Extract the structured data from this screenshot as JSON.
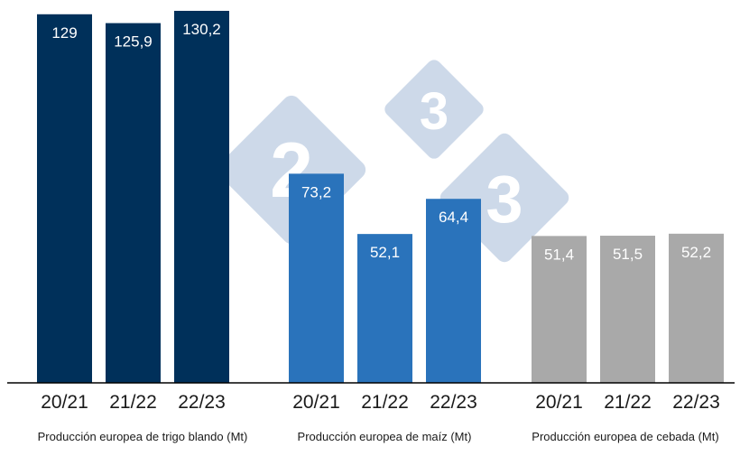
{
  "chart_data": {
    "type": "bar",
    "title": "",
    "ylabel": "",
    "ylim": [
      0,
      135
    ],
    "grid": false,
    "groups": [
      {
        "label": "Producción europea de trigo blando (Mt)",
        "color": "#00305a",
        "categories": [
          "20/21",
          "21/22",
          "22/23"
        ],
        "values": [
          129,
          125.9,
          130.2
        ],
        "value_labels": [
          "129",
          "125,9",
          "130,2"
        ]
      },
      {
        "label": "Producción europea de maíz (Mt)",
        "color": "#2a73bb",
        "categories": [
          "20/21",
          "21/22",
          "22/23"
        ],
        "values": [
          73.2,
          52.1,
          64.4
        ],
        "value_labels": [
          "73,2",
          "52,1",
          "64,4"
        ]
      },
      {
        "label": "Producción europea de cebada (Mt)",
        "color": "#a9a9a9",
        "categories": [
          "20/21",
          "21/22",
          "22/23"
        ],
        "values": [
          51.4,
          51.5,
          52.2
        ],
        "value_labels": [
          "51,4",
          "51,5",
          "52,2"
        ]
      }
    ]
  },
  "watermark": {
    "digits": [
      "2",
      "3",
      "3"
    ],
    "color": "#c5d3e6"
  }
}
